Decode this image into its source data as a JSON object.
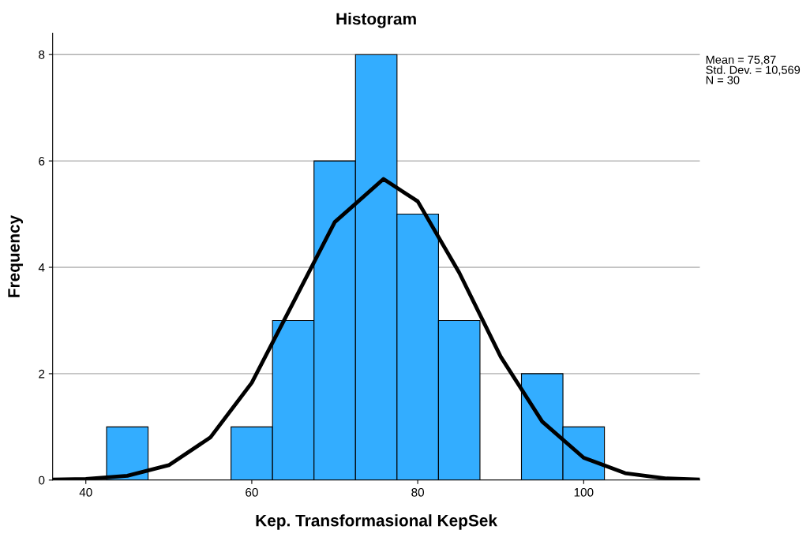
{
  "chart_data": {
    "type": "histogram",
    "title": "Histogram",
    "xlabel": "Kep. Transformasional KepSek",
    "ylabel": "Frequency",
    "bins": [
      42.5,
      47.5,
      52.5,
      57.5,
      62.5,
      67.5,
      72.5,
      77.5,
      82.5,
      87.5,
      92.5,
      97.5,
      102.5
    ],
    "values": [
      1,
      0,
      0,
      1,
      3,
      6,
      8,
      5,
      3,
      0,
      2,
      1
    ],
    "color": "#33adff",
    "series": [
      {
        "type": "line",
        "color": "#000000",
        "x": [
          36,
          40,
          45,
          50,
          55,
          60,
          65,
          70,
          75.87,
          80,
          85,
          90,
          95,
          100,
          105,
          110,
          114
        ],
        "values": [
          0.01,
          0.02,
          0.08,
          0.28,
          0.8,
          1.83,
          3.34,
          4.85,
          5.66,
          5.24,
          3.9,
          2.32,
          1.1,
          0.42,
          0.13,
          0.03,
          0.01
        ]
      }
    ],
    "xlim": [
      36,
      114
    ],
    "xticks": [
      40,
      60,
      80,
      100
    ],
    "ylim": [
      0,
      8.4
    ],
    "yticks": [
      0,
      2,
      4,
      6,
      8
    ],
    "grid": "y",
    "annotations": [
      "Mean = 75,87",
      "Std. Dev. = 10,569",
      "N = 30"
    ]
  }
}
